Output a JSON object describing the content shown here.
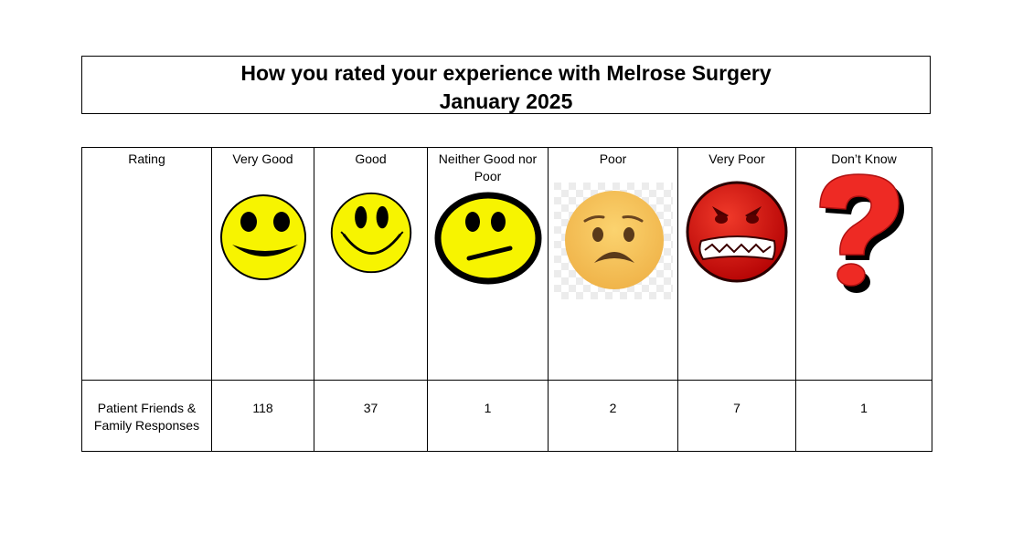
{
  "title": {
    "line1": "How you rated your experience with Melrose Surgery",
    "line2": "January 2025"
  },
  "table": {
    "row_header": "Rating",
    "row_label": "Patient Friends & Family Responses",
    "columns": [
      {
        "label": "Very Good",
        "icon": "very-good-smiley-icon",
        "value": "118"
      },
      {
        "label": "Good",
        "icon": "good-smiley-icon",
        "value": "37"
      },
      {
        "label": "Neither Good nor Poor",
        "icon": "neutral-face-icon",
        "value": "1"
      },
      {
        "label": "Poor",
        "icon": "worried-face-icon",
        "value": "2"
      },
      {
        "label": "Very Poor",
        "icon": "angry-face-icon",
        "value": "7"
      },
      {
        "label": "Don’t Know",
        "icon": "question-mark-icon",
        "value": "1"
      }
    ]
  },
  "colors": {
    "yellow": "#f7f400",
    "poor_face": "#f7c35a",
    "very_poor_face": "#d20f0f",
    "question_mark": "#ee2a24"
  }
}
